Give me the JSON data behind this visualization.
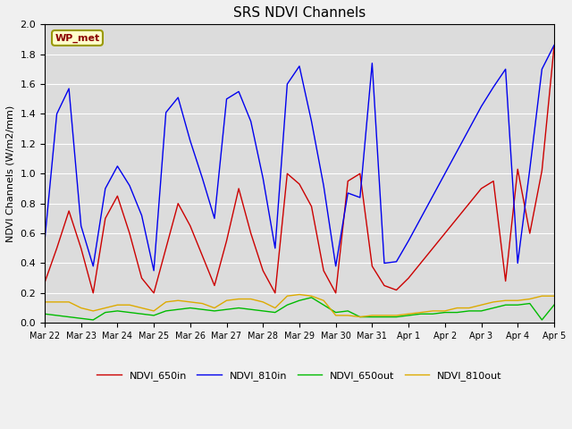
{
  "title": "SRS NDVI Channels",
  "ylabel": "NDVI Channels (W/m2/mm)",
  "annotation": "WP_met",
  "ylim": [
    0.0,
    2.0
  ],
  "yticks": [
    0.0,
    0.2,
    0.4,
    0.6,
    0.8,
    1.0,
    1.2,
    1.4,
    1.6,
    1.8,
    2.0
  ],
  "plot_bg": "#dcdcdc",
  "fig_bg": "#f0f0f0",
  "legend": [
    "NDVI_650in",
    "NDVI_810in",
    "NDVI_650out",
    "NDVI_810out"
  ],
  "line_colors": [
    "#cc0000",
    "#0000ee",
    "#00bb00",
    "#ddaa00"
  ],
  "xtick_labels": [
    "Mar 22",
    "Mar 23",
    "Mar 24",
    "Mar 25",
    "Mar 26",
    "Mar 27",
    "Mar 28",
    "Mar 29",
    "Mar 30",
    "Mar 31",
    "Apr 1",
    "Apr 2",
    "Apr 3",
    "Apr 4",
    "Apr 5"
  ],
  "NDVI_650in": [
    0.27,
    0.5,
    0.75,
    0.5,
    0.2,
    0.7,
    0.85,
    0.6,
    0.3,
    0.2,
    0.5,
    0.8,
    0.65,
    0.45,
    0.25,
    0.55,
    0.9,
    0.6,
    0.35,
    0.2,
    1.0,
    0.93,
    0.78,
    0.35,
    0.2,
    0.95,
    1.0,
    0.38,
    0.25,
    0.22,
    0.3,
    0.4,
    0.5,
    0.6,
    0.7,
    0.8,
    0.9,
    0.95,
    0.28,
    1.03,
    0.6,
    1.02,
    1.85
  ],
  "NDVI_810in": [
    0.55,
    1.4,
    1.57,
    0.65,
    0.38,
    0.9,
    1.05,
    0.92,
    0.72,
    0.35,
    1.41,
    1.51,
    1.22,
    0.97,
    0.7,
    1.5,
    1.55,
    1.35,
    0.97,
    0.5,
    1.6,
    1.72,
    1.35,
    0.92,
    0.38,
    0.87,
    0.84,
    1.74,
    0.4,
    0.41,
    0.55,
    0.7,
    0.85,
    1.0,
    1.15,
    1.3,
    1.45,
    1.58,
    1.7,
    0.4,
    1.03,
    1.7,
    1.86
  ],
  "NDVI_650out": [
    0.06,
    0.05,
    0.04,
    0.03,
    0.02,
    0.07,
    0.08,
    0.07,
    0.06,
    0.05,
    0.08,
    0.09,
    0.1,
    0.09,
    0.08,
    0.09,
    0.1,
    0.09,
    0.08,
    0.07,
    0.12,
    0.15,
    0.17,
    0.12,
    0.07,
    0.08,
    0.04,
    0.04,
    0.04,
    0.04,
    0.05,
    0.06,
    0.06,
    0.07,
    0.07,
    0.08,
    0.08,
    0.1,
    0.12,
    0.12,
    0.13,
    0.02,
    0.12
  ],
  "NDVI_810out": [
    0.14,
    0.14,
    0.14,
    0.1,
    0.08,
    0.1,
    0.12,
    0.12,
    0.1,
    0.08,
    0.14,
    0.15,
    0.14,
    0.13,
    0.1,
    0.15,
    0.16,
    0.16,
    0.14,
    0.1,
    0.18,
    0.19,
    0.18,
    0.15,
    0.05,
    0.05,
    0.04,
    0.05,
    0.05,
    0.05,
    0.06,
    0.07,
    0.08,
    0.08,
    0.1,
    0.1,
    0.12,
    0.14,
    0.15,
    0.15,
    0.16,
    0.18,
    0.18
  ]
}
